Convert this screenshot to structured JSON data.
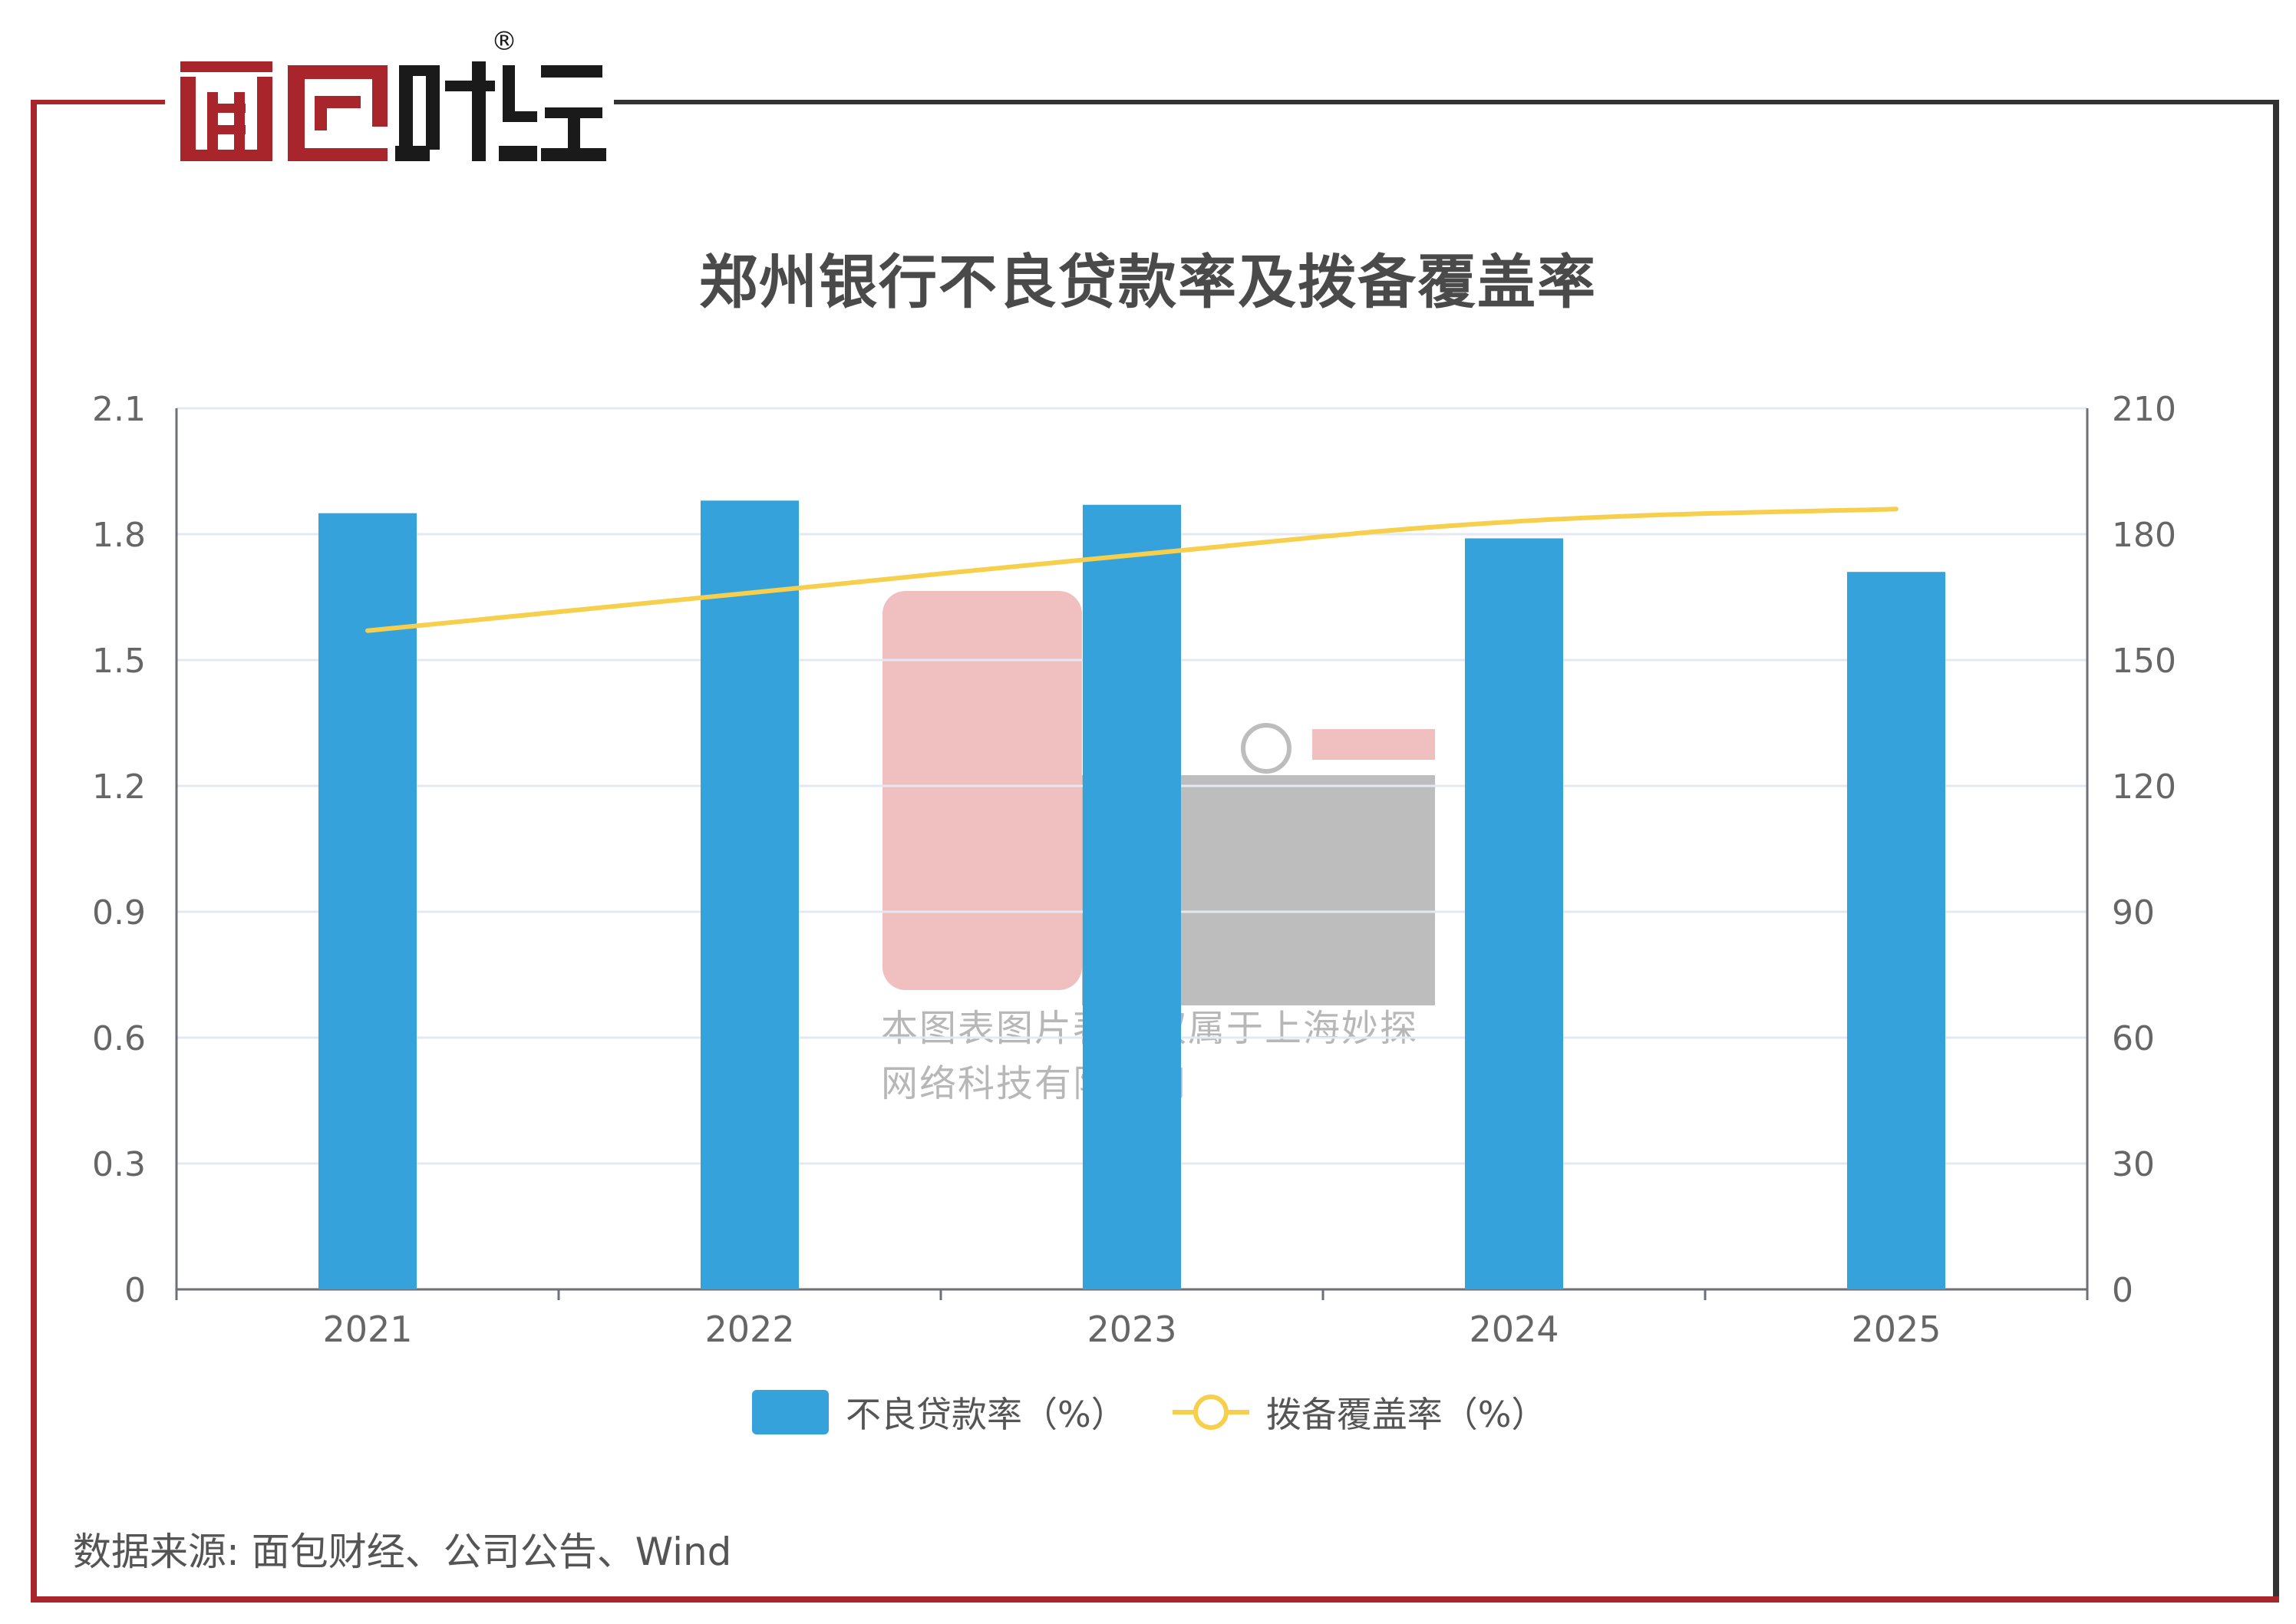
{
  "brand": {
    "logo_text": "面包财经",
    "registered_mark": "®"
  },
  "chart_data": {
    "type": "bar",
    "title": "郑州银行不良贷款率及拨备覆盖率",
    "categories": [
      "2021",
      "2022",
      "2023",
      "2024",
      "2025"
    ],
    "series": [
      {
        "name": "不良贷款率（%）",
        "kind": "bar",
        "axis": "left",
        "color": "#36a2db",
        "values": [
          1.85,
          1.88,
          1.87,
          1.79,
          1.71
        ]
      },
      {
        "name": "拨备覆盖率（%）",
        "kind": "line",
        "axis": "right",
        "color": "#f6d04d",
        "values": [
          157,
          166,
          175,
          183,
          186
        ]
      }
    ],
    "y_left": {
      "min": 0,
      "max": 2.1,
      "ticks": [
        "0",
        "0.3",
        "0.6",
        "0.9",
        "1.2",
        "1.5",
        "1.8",
        "2.1"
      ]
    },
    "y_right": {
      "min": 0,
      "max": 210,
      "ticks": [
        "0",
        "30",
        "60",
        "90",
        "120",
        "150",
        "180",
        "210"
      ]
    },
    "grid": true,
    "legend_position": "bottom-center"
  },
  "watermark": {
    "text_line1": "本图表图片著作权属于上海妙探",
    "text_line2": "网络科技有限公司"
  },
  "source": "数据来源: 面包财经、公司公告、Wind",
  "colors": {
    "frame_red": "#a8252b",
    "frame_dark": "#333333",
    "bar": "#36a2db",
    "line": "#f6d04d"
  }
}
